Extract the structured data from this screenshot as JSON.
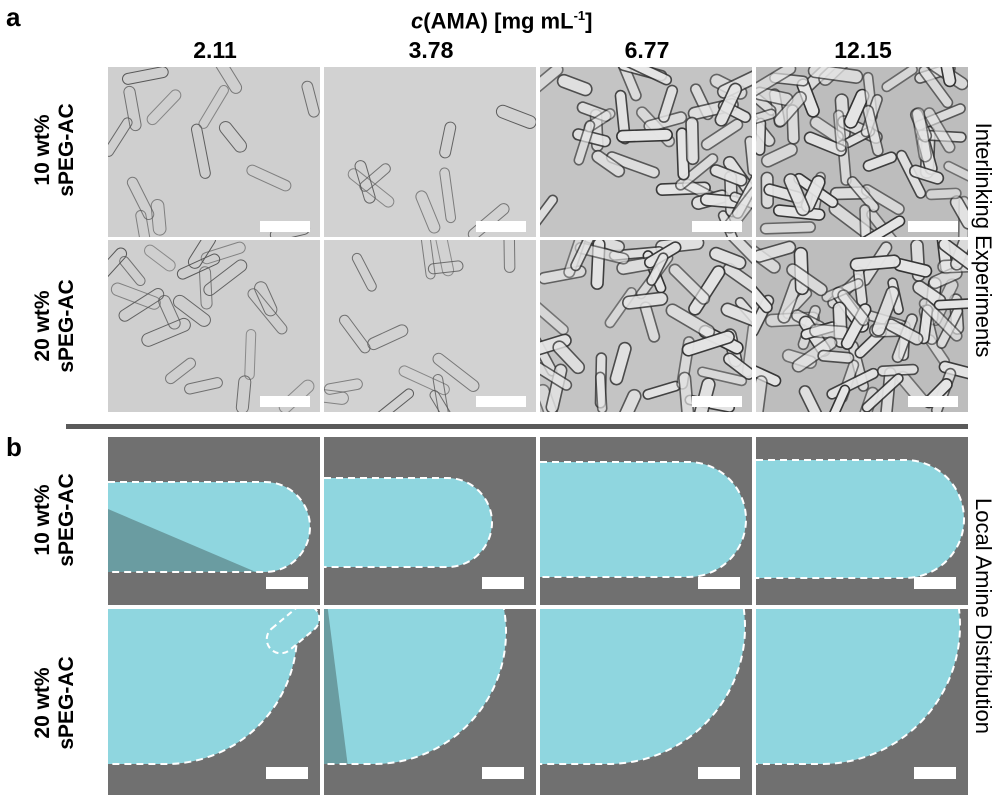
{
  "panel_a": {
    "letter": "a",
    "header_italic": "c",
    "header_rest": "(AMA) [mg mL",
    "header_sup": "-1",
    "header_close": "]",
    "concentrations": [
      "2.11",
      "3.78",
      "6.77",
      "12.15"
    ],
    "rows": [
      {
        "line1": "10 wt%",
        "line2": "sPEG-AC"
      },
      {
        "line1": "20 wt%",
        "line2": "sPEG-AC"
      }
    ],
    "side_label": "Interlinking Experiments"
  },
  "panel_b": {
    "letter": "b",
    "rows": [
      {
        "line1": "10 wt%",
        "line2": "sPEG-AC"
      },
      {
        "line1": "20 wt%",
        "line2": "sPEG-AC"
      }
    ],
    "side_label": "Local Amine Distribution"
  },
  "colors": {
    "micrograph_bg": "#c8c8c8",
    "fluor_bg": "#707070",
    "fluor_fill": "#8fd6df",
    "divider": "#5a5a5a"
  }
}
